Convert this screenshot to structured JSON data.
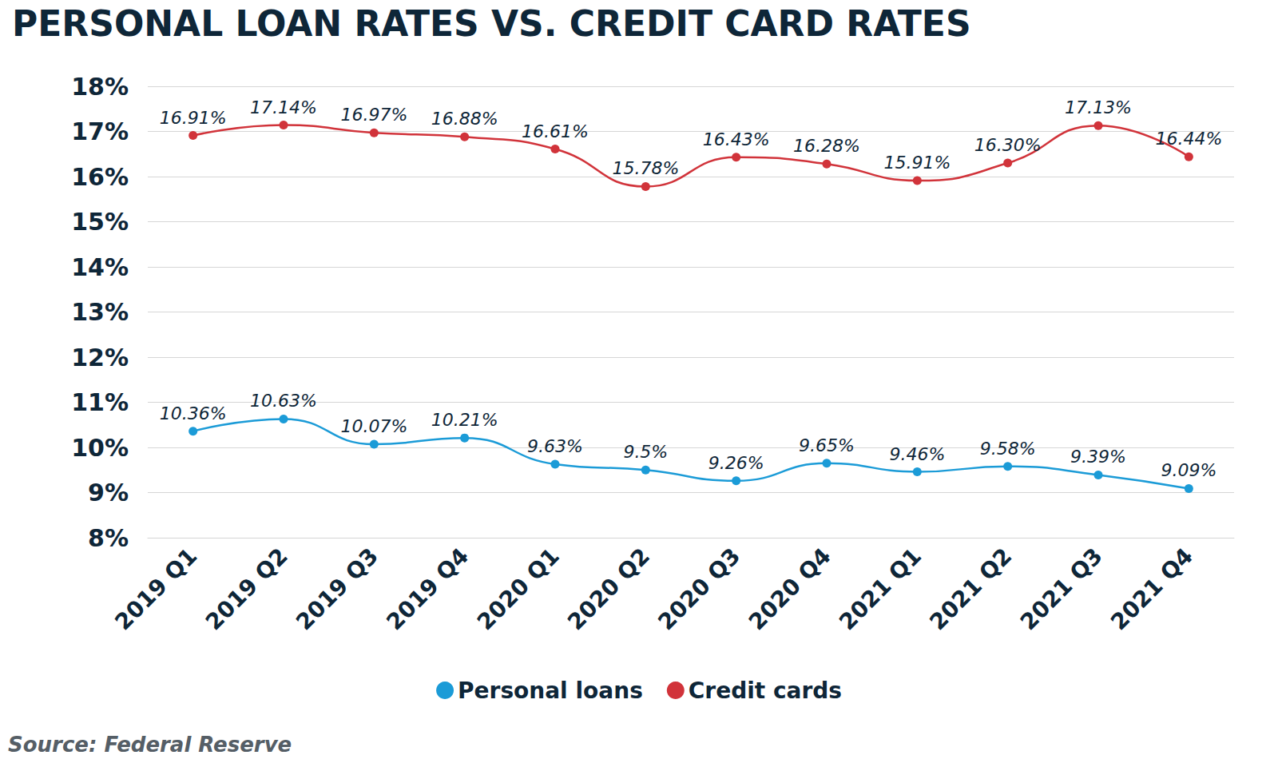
{
  "chart_data": {
    "type": "line",
    "title": "PERSONAL LOAN RATES VS. CREDIT CARD RATES",
    "source": "Source: Federal Reserve",
    "categories": [
      "2019 Q1",
      "2019 Q2",
      "2019 Q3",
      "2019 Q4",
      "2020 Q1",
      "2020 Q2",
      "2020 Q3",
      "2020 Q4",
      "2021 Q1",
      "2021 Q2",
      "2021 Q3",
      "2021 Q4"
    ],
    "series": [
      {
        "name": "Personal loans",
        "color": "#1b9bd7",
        "values": [
          10.36,
          10.63,
          10.07,
          10.21,
          9.63,
          9.5,
          9.26,
          9.65,
          9.46,
          9.58,
          9.39,
          9.09
        ],
        "value_labels": [
          "10.36%",
          "10.63%",
          "10.07%",
          "10.21%",
          "9.63%",
          "9.5%",
          "9.26%",
          "9.65%",
          "9.46%",
          "9.58%",
          "9.39%",
          "9.09%"
        ]
      },
      {
        "name": "Credit cards",
        "color": "#d1333a",
        "values": [
          16.91,
          17.14,
          16.97,
          16.88,
          16.61,
          15.78,
          16.43,
          16.28,
          15.91,
          16.3,
          17.13,
          16.44
        ],
        "value_labels": [
          "16.91%",
          "17.14%",
          "16.97%",
          "16.88%",
          "16.61%",
          "15.78%",
          "16.43%",
          "16.28%",
          "15.91%",
          "16.30%",
          "17.13%",
          "16.44%"
        ]
      }
    ],
    "ylim": [
      8,
      18
    ],
    "yticks": [
      {
        "value": 8,
        "label": "8%"
      },
      {
        "value": 9,
        "label": "9%"
      },
      {
        "value": 10,
        "label": "10%"
      },
      {
        "value": 11,
        "label": "11%"
      },
      {
        "value": 12,
        "label": "12%"
      },
      {
        "value": 13,
        "label": "13%"
      },
      {
        "value": 14,
        "label": "14%"
      },
      {
        "value": 15,
        "label": "15%"
      },
      {
        "value": 16,
        "label": "16%"
      },
      {
        "value": 17,
        "label": "17%"
      },
      {
        "value": 18,
        "label": "18%"
      }
    ],
    "grid": true,
    "legend": "bottom",
    "data_labels": true,
    "marker": "circle",
    "line_style": "smooth"
  }
}
